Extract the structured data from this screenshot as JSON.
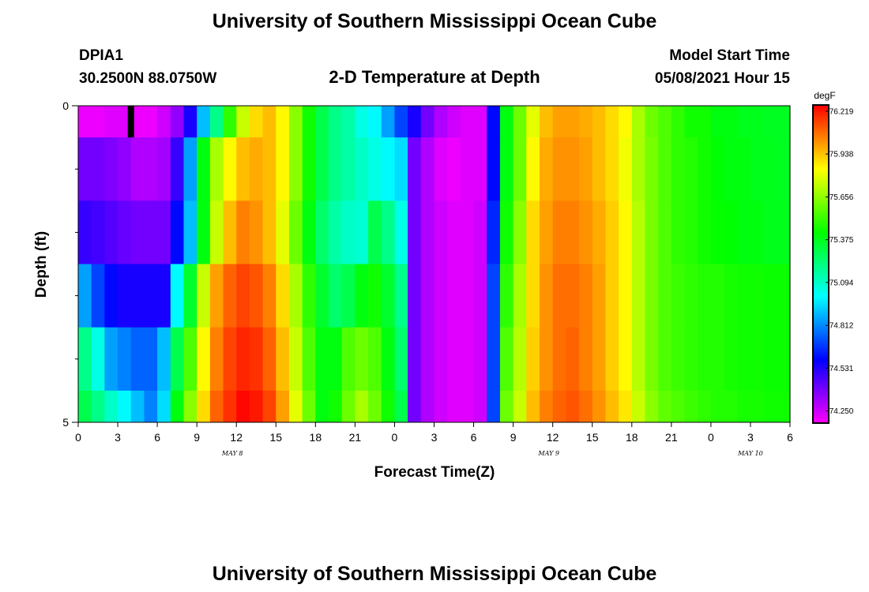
{
  "header": {
    "title": "University of Southern Mississippi Ocean Cube",
    "footer_title": "University of Southern Mississippi Ocean Cube",
    "station_id": "DPIA1",
    "station_coords": "30.2500N  88.0750W",
    "plot_title": "2-D Temperature at Depth",
    "model_start_label": "Model Start Time",
    "model_start_value": "05/08/2021 Hour 15"
  },
  "chart_data": {
    "type": "heatmap",
    "title": "2-D Temperature at Depth",
    "xlabel": "Forecast Time(Z)",
    "ylabel": "Depth (ft)",
    "x_ticks": [
      "0",
      "3",
      "6",
      "9",
      "12",
      "15",
      "18",
      "21",
      "0",
      "3",
      "6",
      "9",
      "12",
      "15",
      "18",
      "21",
      "0",
      "3",
      "6"
    ],
    "x_hours": [
      0,
      3,
      6,
      9,
      12,
      15,
      18,
      21,
      24,
      27,
      30,
      33,
      36,
      39,
      42,
      45,
      48,
      51,
      54
    ],
    "xlim_hours": [
      0,
      54
    ],
    "date_labels": [
      {
        "text": "MAY 8",
        "hour": 11.7
      },
      {
        "text": "MAY 9",
        "hour": 35.7
      },
      {
        "text": "MAY 10",
        "hour": 51.0
      }
    ],
    "y_ticks": [
      "0",
      "5"
    ],
    "ylim_ft": [
      0,
      5
    ],
    "y_minor_ticks_ft": [
      1,
      2,
      3,
      4
    ],
    "depth_layers_ft": [
      [
        0,
        0.5
      ],
      [
        0.5,
        1.5
      ],
      [
        1.5,
        2.5
      ],
      [
        2.5,
        3.5
      ],
      [
        3.5,
        4.5
      ],
      [
        4.5,
        5.0
      ]
    ],
    "colorbar": {
      "unit": "degF",
      "range": [
        74.17,
        76.26
      ],
      "tick_values": [
        74.25,
        74.531,
        74.812,
        75.094,
        75.375,
        75.656,
        75.938,
        76.219
      ],
      "tick_labels": [
        "74.250",
        "74.531",
        "74.812",
        "75.094",
        "75.375",
        "75.656",
        "75.938",
        "76.219"
      ]
    },
    "marker": {
      "hour": 4.0,
      "depth_ft": [
        0,
        0.5
      ]
    },
    "column_width_hours": 1.0,
    "rows_degF": [
      [
        74.2,
        74.2,
        74.22,
        74.22,
        74.2,
        74.2,
        74.25,
        74.35,
        74.55,
        74.9,
        75.2,
        75.5,
        75.75,
        75.9,
        75.95,
        75.85,
        75.65,
        75.45,
        75.3,
        75.2,
        75.15,
        75.05,
        75.0,
        74.85,
        74.7,
        74.55,
        74.4,
        74.3,
        74.25,
        74.22,
        74.22,
        74.6,
        75.4,
        75.6,
        75.8,
        75.95,
        76.0,
        76.0,
        75.98,
        75.95,
        75.9,
        75.85,
        75.7,
        75.6,
        75.55,
        75.5,
        75.45,
        75.45,
        75.4,
        75.4,
        75.38,
        75.38,
        75.37,
        75.37
      ],
      [
        74.4,
        74.4,
        74.38,
        74.35,
        74.3,
        74.3,
        74.32,
        74.5,
        74.85,
        75.4,
        75.7,
        75.85,
        75.95,
        75.98,
        75.95,
        75.85,
        75.65,
        75.45,
        75.3,
        75.2,
        75.15,
        75.1,
        75.05,
        75.0,
        74.95,
        74.4,
        74.3,
        74.22,
        74.2,
        74.22,
        74.22,
        74.6,
        75.4,
        75.6,
        75.85,
        75.98,
        76.02,
        76.02,
        76.0,
        75.95,
        75.9,
        75.82,
        75.7,
        75.62,
        75.55,
        75.5,
        75.48,
        75.45,
        75.42,
        75.4,
        75.4,
        75.38,
        75.38,
        75.37
      ],
      [
        74.5,
        74.48,
        74.45,
        74.42,
        74.4,
        74.4,
        74.4,
        74.6,
        74.9,
        75.4,
        75.75,
        75.95,
        76.05,
        76.02,
        75.95,
        75.8,
        75.6,
        75.4,
        75.25,
        75.15,
        75.1,
        75.08,
        75.3,
        75.2,
        75.05,
        74.4,
        74.3,
        74.25,
        74.22,
        74.22,
        74.25,
        74.65,
        75.45,
        75.65,
        75.9,
        76.0,
        76.05,
        76.05,
        76.02,
        75.98,
        75.92,
        75.85,
        75.72,
        75.62,
        75.55,
        75.5,
        75.48,
        75.45,
        75.43,
        75.42,
        75.4,
        75.4,
        75.38,
        75.38
      ],
      [
        74.85,
        74.7,
        74.6,
        74.55,
        74.55,
        74.55,
        74.55,
        75.0,
        75.35,
        75.75,
        76.0,
        76.1,
        76.15,
        76.12,
        76.05,
        75.9,
        75.7,
        75.5,
        75.35,
        75.25,
        75.3,
        75.4,
        75.45,
        75.35,
        75.2,
        74.4,
        74.3,
        74.25,
        74.22,
        74.22,
        74.25,
        74.7,
        75.5,
        75.7,
        75.9,
        76.02,
        76.08,
        76.08,
        76.05,
        76.0,
        75.92,
        75.85,
        75.72,
        75.62,
        75.55,
        75.52,
        75.5,
        75.48,
        75.48,
        75.46,
        75.45,
        75.45,
        75.44,
        75.44
      ],
      [
        75.2,
        75.05,
        74.85,
        74.8,
        74.75,
        74.75,
        74.9,
        75.3,
        75.55,
        75.85,
        76.05,
        76.15,
        76.2,
        76.18,
        76.1,
        75.95,
        75.75,
        75.55,
        75.4,
        75.4,
        75.55,
        75.6,
        75.55,
        75.4,
        75.25,
        74.4,
        74.3,
        74.25,
        74.22,
        74.22,
        74.25,
        74.7,
        75.55,
        75.72,
        75.92,
        76.02,
        76.08,
        76.1,
        76.05,
        76.0,
        75.92,
        75.85,
        75.72,
        75.62,
        75.55,
        75.52,
        75.5,
        75.48,
        75.48,
        75.46,
        75.45,
        75.45,
        75.44,
        75.44
      ],
      [
        75.3,
        75.2,
        75.1,
        75.0,
        74.9,
        74.8,
        74.95,
        75.4,
        75.65,
        75.9,
        76.1,
        76.18,
        76.25,
        76.22,
        76.15,
        76.0,
        75.8,
        75.6,
        75.4,
        75.45,
        75.6,
        75.7,
        75.6,
        75.45,
        75.3,
        74.4,
        74.3,
        74.25,
        74.22,
        74.22,
        74.25,
        74.7,
        75.6,
        75.75,
        75.95,
        76.05,
        76.1,
        76.12,
        76.08,
        76.02,
        75.95,
        75.88,
        75.75,
        75.65,
        75.58,
        75.55,
        75.52,
        75.5,
        75.48,
        75.48,
        75.46,
        75.46,
        75.45,
        75.45
      ]
    ]
  }
}
